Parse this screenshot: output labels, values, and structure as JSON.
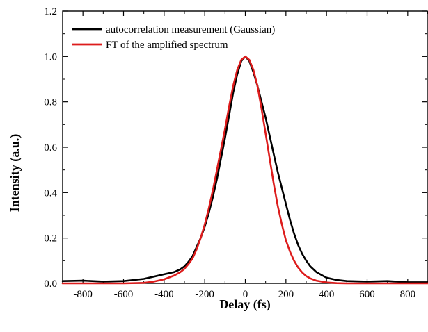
{
  "chart_data": {
    "type": "line",
    "xlabel": "Delay (fs)",
    "ylabel": "Intensity (a.u.)",
    "xlim": [
      -900,
      900
    ],
    "ylim": [
      0.0,
      1.2
    ],
    "x_ticks": [
      -800,
      -600,
      -400,
      -200,
      0,
      200,
      400,
      600,
      800
    ],
    "x_tick_labels": [
      "-800",
      "-600",
      "-400",
      "-200",
      "0",
      "200",
      "400",
      "600",
      "800"
    ],
    "y_ticks": [
      0.0,
      0.2,
      0.4,
      0.6,
      0.8,
      1.0,
      1.2
    ],
    "y_tick_labels": [
      "0.0",
      "0.2",
      "0.4",
      "0.6",
      "0.8",
      "1.0",
      "1.2"
    ],
    "grid": false,
    "legend_position": "top-left",
    "series": [
      {
        "name": "autocorrelation measurement (Gaussian)",
        "color": "#000000",
        "x": [
          -900,
          -800,
          -700,
          -600,
          -500,
          -450,
          -400,
          -350,
          -320,
          -300,
          -280,
          -260,
          -240,
          -220,
          -200,
          -180,
          -160,
          -140,
          -120,
          -100,
          -80,
          -60,
          -40,
          -20,
          0,
          20,
          40,
          60,
          80,
          100,
          120,
          140,
          160,
          180,
          200,
          220,
          240,
          260,
          280,
          300,
          320,
          350,
          380,
          400,
          450,
          500,
          600,
          700,
          800,
          900
        ],
        "values": [
          0.01,
          0.012,
          0.008,
          0.01,
          0.02,
          0.03,
          0.04,
          0.05,
          0.062,
          0.075,
          0.095,
          0.12,
          0.16,
          0.2,
          0.25,
          0.31,
          0.38,
          0.46,
          0.55,
          0.64,
          0.74,
          0.84,
          0.92,
          0.98,
          1.0,
          0.98,
          0.93,
          0.87,
          0.8,
          0.73,
          0.65,
          0.57,
          0.49,
          0.42,
          0.35,
          0.28,
          0.22,
          0.17,
          0.13,
          0.1,
          0.075,
          0.05,
          0.035,
          0.025,
          0.015,
          0.01,
          0.008,
          0.01,
          0.005,
          0.005
        ]
      },
      {
        "name": "FT of the amplified spectrum",
        "color": "#dd1c1c",
        "x": [
          -900,
          -600,
          -500,
          -450,
          -400,
          -350,
          -320,
          -300,
          -280,
          -260,
          -240,
          -220,
          -200,
          -180,
          -160,
          -140,
          -120,
          -100,
          -80,
          -60,
          -40,
          -20,
          0,
          20,
          40,
          60,
          80,
          100,
          120,
          140,
          160,
          180,
          200,
          220,
          240,
          260,
          280,
          300,
          320,
          350,
          400,
          450,
          500,
          550,
          600,
          900
        ],
        "values": [
          0.0,
          0.0,
          0.002,
          0.008,
          0.018,
          0.035,
          0.05,
          0.064,
          0.085,
          0.11,
          0.15,
          0.2,
          0.26,
          0.33,
          0.41,
          0.5,
          0.59,
          0.68,
          0.78,
          0.87,
          0.94,
          0.985,
          1.0,
          0.985,
          0.94,
          0.87,
          0.77,
          0.66,
          0.55,
          0.44,
          0.34,
          0.26,
          0.19,
          0.14,
          0.1,
          0.07,
          0.048,
          0.032,
          0.022,
          0.012,
          0.004,
          0.001,
          0.0,
          0.0,
          0.0,
          0.0
        ]
      }
    ]
  }
}
